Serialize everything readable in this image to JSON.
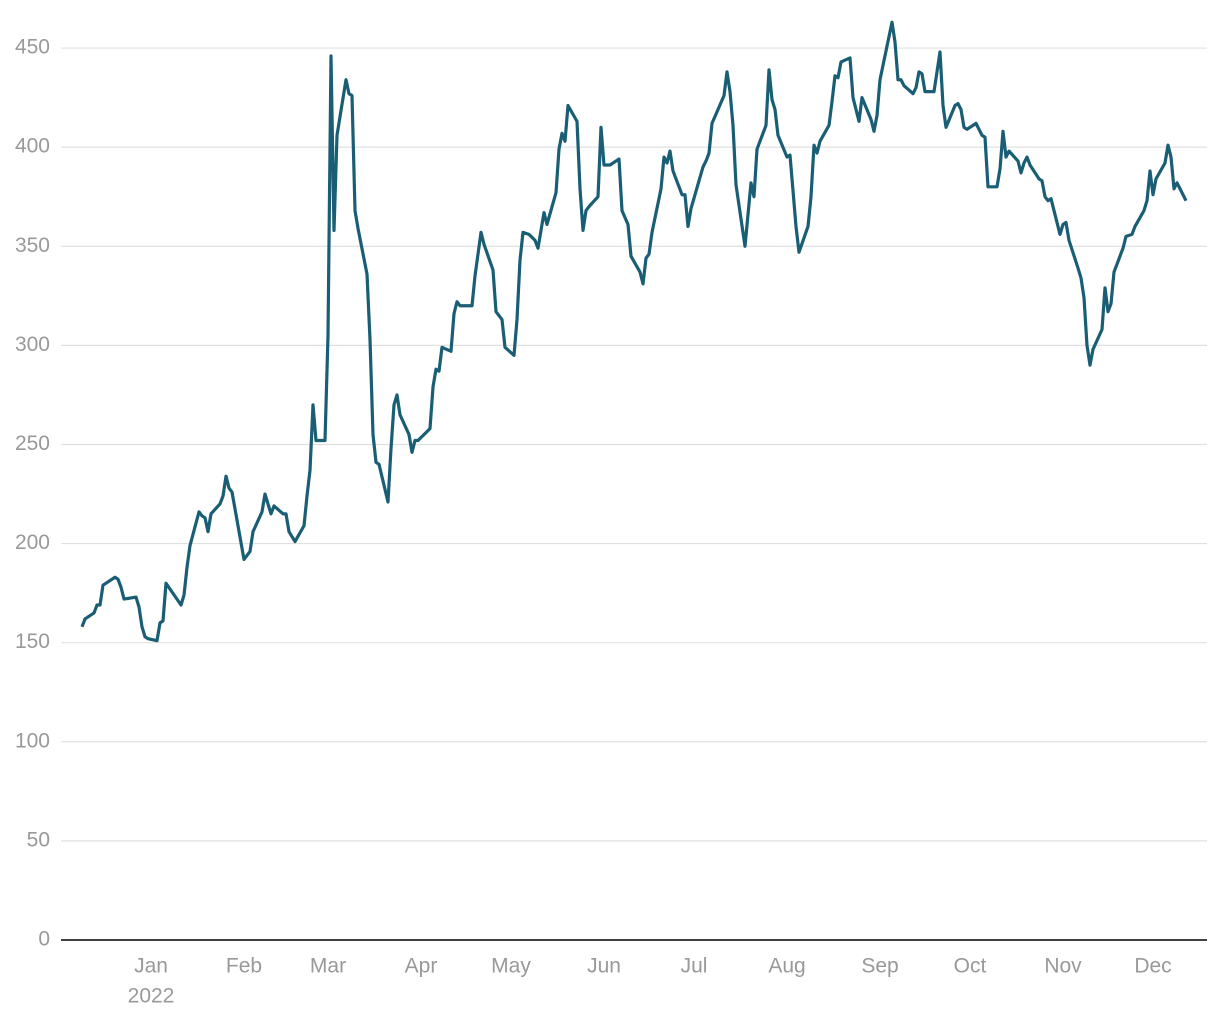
{
  "chart_data": {
    "type": "line",
    "x": [
      -23,
      -22,
      -20,
      -19,
      -18,
      -17,
      -16,
      -12,
      -11,
      -10,
      -9,
      -5,
      -4,
      -3,
      -2,
      -1,
      2,
      3,
      4,
      5,
      10,
      11,
      12,
      13,
      16,
      17,
      18,
      19,
      20,
      23,
      24,
      25,
      26,
      27,
      31,
      32,
      33,
      34,
      37,
      38,
      40,
      41,
      44,
      45,
      46,
      48,
      51,
      52,
      53,
      54,
      55,
      58,
      59,
      60,
      61,
      62,
      65,
      66,
      67,
      68,
      69,
      72,
      73,
      74,
      75,
      76,
      79,
      80,
      81,
      82,
      83,
      86,
      87,
      88,
      89,
      93,
      94,
      95,
      96,
      97,
      100,
      101,
      102,
      103,
      107,
      108,
      110,
      111,
      114,
      115,
      117,
      118,
      121,
      122,
      123,
      124,
      126,
      128,
      129,
      130,
      131,
      132,
      135,
      136,
      137,
      138,
      139,
      142,
      143,
      144,
      145,
      146,
      149,
      150,
      151,
      153,
      156,
      157,
      159,
      160,
      163,
      164,
      165,
      166,
      167,
      170,
      171,
      172,
      173,
      174,
      177,
      178,
      179,
      180,
      184,
      185,
      186,
      187,
      191,
      192,
      193,
      194,
      195,
      198,
      200,
      201,
      202,
      205,
      206,
      207,
      208,
      209,
      212,
      213,
      215,
      216,
      219,
      220,
      221,
      222,
      223,
      226,
      227,
      228,
      229,
      230,
      233,
      234,
      236,
      237,
      240,
      241,
      242,
      243,
      247,
      248,
      249,
      250,
      251,
      254,
      255,
      256,
      257,
      258,
      261,
      263,
      264,
      265,
      268,
      269,
      270,
      271,
      272,
      275,
      277,
      278,
      279,
      282,
      283,
      284,
      285,
      286,
      289,
      290,
      291,
      292,
      293,
      296,
      297,
      298,
      299,
      300,
      303,
      304,
      305,
      306,
      309,
      310,
      311,
      312,
      313,
      314,
      317,
      318,
      319,
      320,
      321,
      324,
      325,
      327,
      328,
      331,
      332,
      333,
      334,
      335,
      338,
      339,
      340,
      341,
      342,
      343,
      345
    ],
    "series": [
      {
        "color": "#1a5e75",
        "values": [
          158,
          162,
          164,
          165,
          169,
          169,
          179,
          183,
          182,
          178,
          172,
          173,
          168,
          158,
          153,
          152,
          151,
          160,
          161,
          180,
          169,
          174,
          188,
          199,
          216,
          214,
          213,
          206,
          215,
          220,
          224,
          234,
          228,
          226,
          192,
          194,
          196,
          206,
          216,
          225,
          215,
          219,
          215,
          215,
          206,
          201,
          209,
          224,
          237,
          270,
          252,
          252,
          305,
          446,
          358,
          406,
          434,
          427,
          426,
          368,
          359,
          336,
          303,
          255,
          241,
          240,
          221,
          248,
          270,
          275,
          265,
          255,
          246,
          252,
          252,
          258,
          279,
          288,
          287,
          299,
          297,
          316,
          322,
          320,
          320,
          335,
          357,
          351,
          338,
          317,
          313,
          299,
          295,
          313,
          343,
          357,
          356,
          353,
          349,
          358,
          367,
          361,
          377,
          399,
          407,
          403,
          421,
          413,
          379,
          358,
          368,
          370,
          375,
          410,
          391,
          391,
          394,
          368,
          361,
          345,
          337,
          331,
          344,
          346,
          357,
          379,
          395,
          392,
          398,
          388,
          376,
          376,
          360,
          369,
          390,
          393,
          397,
          412,
          426,
          438,
          428,
          411,
          381,
          350,
          382,
          375,
          399,
          411,
          439,
          424,
          419,
          406,
          395,
          396,
          360,
          347,
          360,
          375,
          401,
          397,
          403,
          411,
          423,
          436,
          435,
          443,
          445,
          425,
          413,
          425,
          414,
          408,
          416,
          434,
          463,
          453,
          434,
          434,
          431,
          427,
          430,
          438,
          437,
          428,
          428,
          448,
          421,
          410,
          421,
          422,
          419,
          410,
          409,
          412,
          406,
          405,
          380,
          380,
          389,
          408,
          395,
          398,
          393,
          387,
          392,
          395,
          391,
          384,
          383,
          375,
          373,
          374,
          356,
          361,
          362,
          353,
          339,
          334,
          324,
          300,
          290,
          298,
          308,
          329,
          317,
          321,
          337,
          349,
          355,
          356,
          360,
          368,
          373,
          388,
          376,
          384,
          392,
          401,
          395,
          379,
          382,
          379,
          373
        ]
      }
    ],
    "xlim": [
      -30,
      352
    ],
    "xticks": [
      {
        "value": 0,
        "label": "Jan"
      },
      {
        "value": 31,
        "label": "Feb"
      },
      {
        "value": 59,
        "label": "Mar"
      },
      {
        "value": 90,
        "label": "Apr"
      },
      {
        "value": 120,
        "label": "May"
      },
      {
        "value": 151,
        "label": "Jun"
      },
      {
        "value": 181,
        "label": "Jul"
      },
      {
        "value": 212,
        "label": "Aug"
      },
      {
        "value": 243,
        "label": "Sep"
      },
      {
        "value": 273,
        "label": "Oct"
      },
      {
        "value": 304,
        "label": "Nov"
      },
      {
        "value": 334,
        "label": "Dec"
      }
    ],
    "x_year_label": "2022",
    "ylim": [
      0,
      470
    ],
    "yticks": [
      0,
      50,
      100,
      150,
      200,
      250,
      300,
      350,
      400,
      450
    ],
    "grid": true
  }
}
